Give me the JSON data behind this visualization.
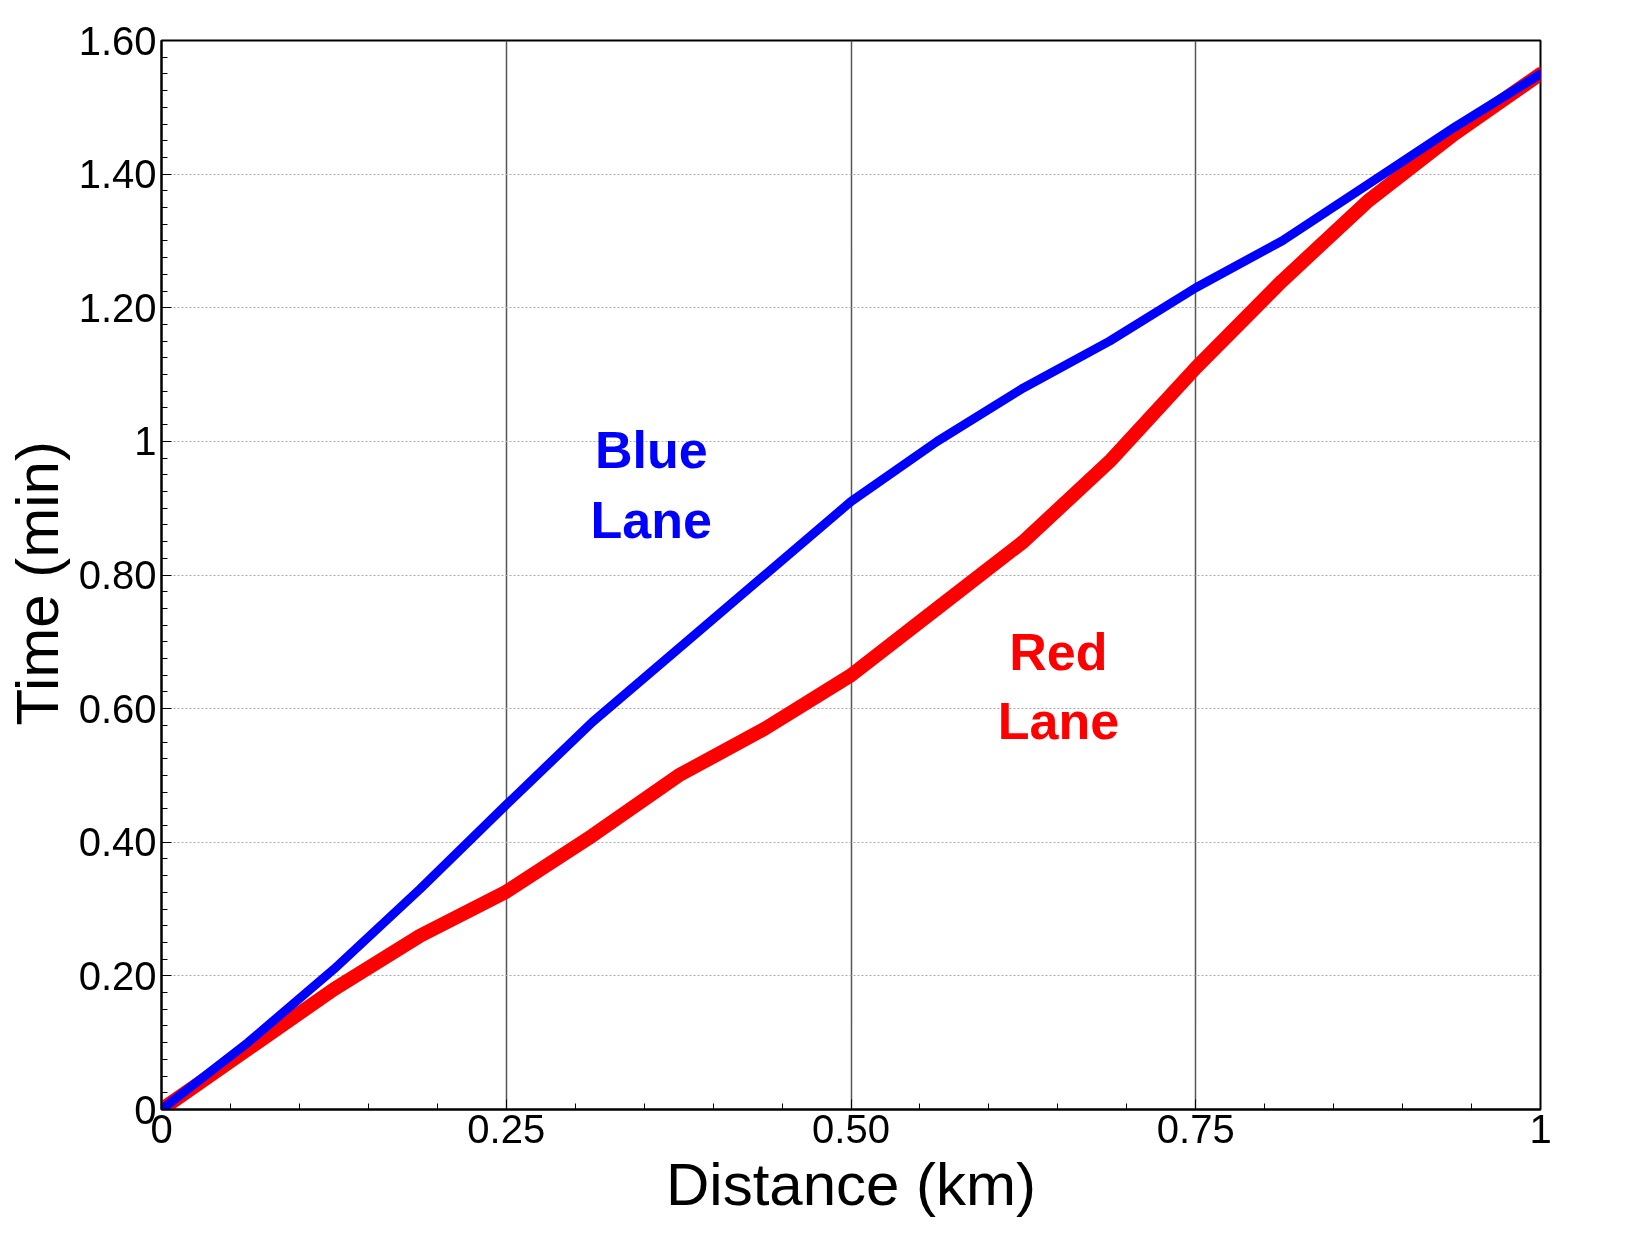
{
  "chart_data": {
    "type": "line",
    "xlabel": "Distance (km)",
    "ylabel": "Time  (min)",
    "x": [
      0,
      0.0625,
      0.125,
      0.1875,
      0.25,
      0.3125,
      0.375,
      0.4375,
      0.5,
      0.5625,
      0.625,
      0.6875,
      0.75,
      0.8125,
      0.875,
      0.9375,
      1
    ],
    "series": [
      {
        "name": "Blue Lane",
        "color": "#0000ff",
        "values": [
          0,
          0.1,
          0.21,
          0.33,
          0.456,
          0.58,
          0.69,
          0.8,
          0.91,
          1.0,
          1.08,
          1.15,
          1.23,
          1.3,
          1.385,
          1.47,
          1.55
        ]
      },
      {
        "name": "Red Lane",
        "color": "#ff0000",
        "values": [
          0,
          0.09,
          0.18,
          0.26,
          0.326,
          0.41,
          0.5,
          0.57,
          0.65,
          0.75,
          0.85,
          0.97,
          1.11,
          1.24,
          1.36,
          1.46,
          1.55
        ]
      }
    ],
    "xlim": [
      0,
      1
    ],
    "ylim": [
      0,
      1.6
    ],
    "xticks": [
      0,
      {
        "value": 0.25,
        "label": "0.25"
      },
      {
        "value": 0.5,
        "label": "0.50"
      },
      {
        "value": 0.75,
        "label": "0.75"
      },
      1
    ],
    "yticks": [
      0,
      {
        "value": 0.2,
        "label": "0.20"
      },
      {
        "value": 0.4,
        "label": "0.40"
      },
      {
        "value": 0.6,
        "label": "0.60"
      },
      {
        "value": 0.8,
        "label": "0.80"
      },
      1,
      {
        "value": 1.2,
        "label": "1.20"
      },
      {
        "value": 1.4,
        "label": "1.40"
      },
      {
        "value": 1.6,
        "label": "1.60"
      }
    ],
    "grid": true,
    "marker": "none",
    "line_style": "solid"
  }
}
